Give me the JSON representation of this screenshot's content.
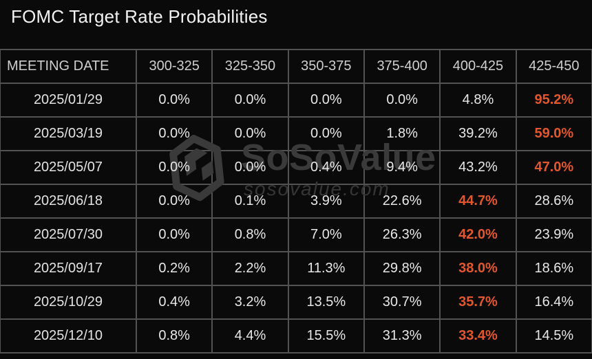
{
  "title": "FOMC Target Rate Probabilities",
  "watermark": {
    "brand": "SoSoValue",
    "domain": "sosovalue.com",
    "logo": "sosovalue-cube-logo"
  },
  "colors": {
    "background": "#0a0a0a",
    "border": "#525252",
    "title_text": "#f2f2f2",
    "header_text": "#cfcfcf",
    "cell_text": "#e8e8e8",
    "highlight": "#e2572e",
    "watermark": "#3a3a3a"
  },
  "chart_data": {
    "type": "table",
    "title": "FOMC Target Rate Probabilities",
    "columns": [
      "MEETING DATE",
      "300-325",
      "325-350",
      "350-375",
      "375-400",
      "400-425",
      "425-450"
    ],
    "rows": [
      {
        "date": "2025/01/29",
        "values": [
          "0.0%",
          "0.0%",
          "0.0%",
          "0.0%",
          "4.8%",
          "95.2%"
        ],
        "highlight": 5
      },
      {
        "date": "2025/03/19",
        "values": [
          "0.0%",
          "0.0%",
          "0.0%",
          "1.8%",
          "39.2%",
          "59.0%"
        ],
        "highlight": 5
      },
      {
        "date": "2025/05/07",
        "values": [
          "0.0%",
          "0.0%",
          "0.4%",
          "9.4%",
          "43.2%",
          "47.0%"
        ],
        "highlight": 5
      },
      {
        "date": "2025/06/18",
        "values": [
          "0.0%",
          "0.1%",
          "3.9%",
          "22.6%",
          "44.7%",
          "28.6%"
        ],
        "highlight": 4
      },
      {
        "date": "2025/07/30",
        "values": [
          "0.0%",
          "0.8%",
          "7.0%",
          "26.3%",
          "42.0%",
          "23.9%"
        ],
        "highlight": 4
      },
      {
        "date": "2025/09/17",
        "values": [
          "0.2%",
          "2.2%",
          "11.3%",
          "29.8%",
          "38.0%",
          "18.6%"
        ],
        "highlight": 4
      },
      {
        "date": "2025/10/29",
        "values": [
          "0.4%",
          "3.2%",
          "13.5%",
          "30.7%",
          "35.7%",
          "16.4%"
        ],
        "highlight": 4
      },
      {
        "date": "2025/12/10",
        "values": [
          "0.8%",
          "4.4%",
          "15.5%",
          "31.3%",
          "33.4%",
          "14.5%"
        ],
        "highlight": 4
      }
    ]
  }
}
